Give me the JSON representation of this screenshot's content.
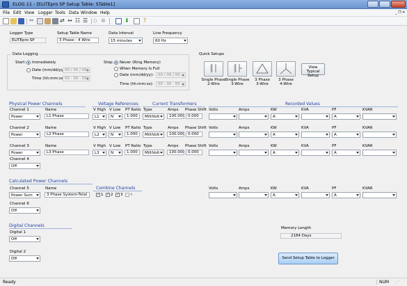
{
  "window": {
    "title": "ELOG 11 - [ELITEpro SP Setup Table: STable1]"
  },
  "menu": [
    "File",
    "Edit",
    "View",
    "Logger",
    "Tools",
    "Data",
    "Window",
    "Help"
  ],
  "colors": {
    "section_blue": "#1e3ea0",
    "titlebar": "#7aa3d9",
    "send_button": "#a9cff5"
  },
  "toolbar_icons": [
    "new-icon",
    "open-icon",
    "save-icon",
    "cut-icon",
    "copy-icon",
    "paste-icon",
    "print-icon",
    "connect-icon",
    "flow-icon",
    "table-icon",
    "list-icon",
    "link-icon",
    "cancel-icon",
    "export-icon",
    "download-icon",
    "chart-icon",
    "help-icon"
  ],
  "setup": {
    "logger_type_label": "Logger Type",
    "logger_type": "ELITEpro SP",
    "table_name_label": "Setup Table Name",
    "table_name": "3 Phase - 4 Wire",
    "interval_label": "Data Interval",
    "interval": "15 minutes",
    "frequency_label": "Line Frequency",
    "frequency": "60 Hz"
  },
  "data_logging": {
    "title": "Data Logging",
    "start_label": "Start:",
    "start_immediately": "Immediately",
    "start_date_label": "Date (mm/dd/yy):",
    "start_date": "00 / 00 / 00",
    "start_time_label": "Time (hh:mm:ss):",
    "start_time": "00 : 00 : 00",
    "stop_label": "Stop:",
    "stop_never": "Never (Ring Memory)",
    "stop_memory_full": "When Memory Is Full",
    "stop_date_label": "Date (mm/dd/yy):",
    "stop_date": "00 / 00 / 00",
    "stop_time_label": "Time (hh:mm:ss):",
    "stop_time": "00 : 00 : 00"
  },
  "quick_setups": {
    "title": "Quick Setups",
    "buttons": [
      "Single Phase\n2-Wire",
      "Single Phase\n3-Wire",
      "3 Phase\n3-Wire",
      "3 Phase\n4-Wire"
    ],
    "view_typical": "View Typical Setup"
  },
  "physical": {
    "title": "Physical Power Channels",
    "voltage_refs": "Voltage References",
    "current_transformers": "Current Transformers",
    "recorded_values": "Recorded Values",
    "col_name": "Name",
    "col_vhigh": "V High",
    "col_vlow": "V Low",
    "col_ptratio": "PT Ratio",
    "col_type": "Type",
    "col_amps": "Amps",
    "col_phase_shift": "Phase Shift",
    "col_volts": "Volts",
    "col_amps2": "Amps",
    "col_kw": "KW",
    "col_kva": "KVA",
    "col_pf": "PF",
    "col_kvar": "KVAR",
    "channels": [
      {
        "label": "Channel 1",
        "mode": "Power",
        "name": "L1 Phase",
        "vhigh": "L1",
        "vlow": "N",
        "ptratio": "1.000",
        "type": "MilliVolt",
        "amps": "100.000",
        "phase_shift": "0.000",
        "kw": "A",
        "pf": "A"
      },
      {
        "label": "Channel 2",
        "mode": "Power",
        "name": "L2 Phase",
        "vhigh": "L2",
        "vlow": "N",
        "ptratio": "1.000",
        "type": "MilliVolt",
        "amps": "100.000",
        "phase_shift": "0.000",
        "kw": "A",
        "pf": "A"
      },
      {
        "label": "Channel 3",
        "mode": "Power",
        "name": "L3 Phase",
        "vhigh": "L3",
        "vlow": "N",
        "ptratio": "1.000",
        "type": "MilliVolt",
        "amps": "100.000",
        "phase_shift": "0.000",
        "kw": "A",
        "pf": "A"
      },
      {
        "label": "Channel 4",
        "mode": "Off"
      }
    ]
  },
  "calculated": {
    "title": "Calculated Power Channels",
    "channel5_label": "Channel 5",
    "channel5_mode": "Power Sum",
    "name_label": "Name",
    "name": "3 Phase System-Total",
    "combine_label": "Combine Channels",
    "combine": [
      "1",
      "2",
      "3",
      "4"
    ],
    "volts": "Volts",
    "amps": "Amps",
    "kw": "KW",
    "kva": "KVA",
    "pf": "PF",
    "kvar": "KVAR",
    "kw_value": "A",
    "pf_value": "A",
    "channel6_label": "Channel 6",
    "channel6_mode": "Off"
  },
  "digital": {
    "title": "Digital Channels",
    "digital1_label": "Digital 1",
    "digital1_mode": "Off",
    "digital2_label": "Digital 2",
    "digital2_mode": "Off"
  },
  "memory": {
    "label": "Memory Length",
    "value": "2184 Days"
  },
  "send_button": "Send Setup Table to Logger",
  "status": {
    "left": "Ready",
    "right": "NUM"
  }
}
